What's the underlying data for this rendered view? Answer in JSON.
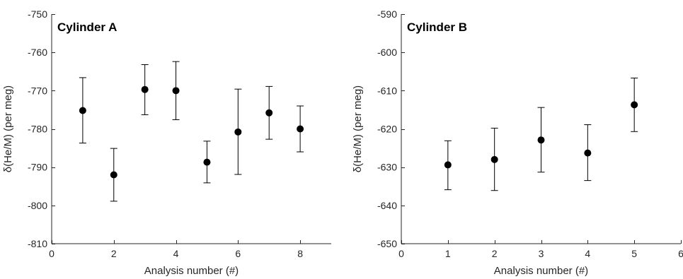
{
  "chart_data": [
    {
      "type": "scatter",
      "title": "Cylinder A",
      "xlabel": "Analysis number (#)",
      "ylabel": "δ(He/M) (per meg)",
      "xlim": [
        0,
        9
      ],
      "ylim": [
        -810,
        -750
      ],
      "xticks": [
        0,
        2,
        4,
        6,
        8
      ],
      "yticks": [
        -810,
        -800,
        -790,
        -780,
        -770,
        -760,
        -750
      ],
      "grid": false,
      "series": [
        {
          "x": [
            1,
            2,
            3,
            4,
            5,
            6,
            7,
            8
          ],
          "y": [
            -775.2,
            -792.0,
            -769.7,
            -770.0,
            -788.7,
            -780.8,
            -775.8,
            -780.0
          ],
          "err_low": [
            -783.7,
            -798.9,
            -776.3,
            -777.6,
            -794.1,
            -791.9,
            -782.7,
            -786.0
          ],
          "err_high": [
            -766.6,
            -785.1,
            -763.2,
            -762.4,
            -783.2,
            -769.6,
            -768.9,
            -774.0
          ]
        }
      ]
    },
    {
      "type": "scatter",
      "title": "Cylinder B",
      "xlabel": "Analysis number (#)",
      "ylabel": "δ(He/M) (per meg)",
      "xlim": [
        0,
        6
      ],
      "ylim": [
        -650,
        -590
      ],
      "xticks": [
        0,
        1,
        2,
        3,
        4,
        5,
        6
      ],
      "yticks": [
        -650,
        -640,
        -630,
        -620,
        -610,
        -600,
        -590
      ],
      "grid": false,
      "series": [
        {
          "x": [
            1,
            2,
            3,
            4,
            5
          ],
          "y": [
            -629.4,
            -628.0,
            -622.9,
            -626.3,
            -613.7
          ],
          "err_low": [
            -635.9,
            -636.1,
            -631.3,
            -633.5,
            -620.7
          ],
          "err_high": [
            -623.1,
            -619.8,
            -614.4,
            -618.9,
            -606.7
          ]
        }
      ]
    }
  ]
}
